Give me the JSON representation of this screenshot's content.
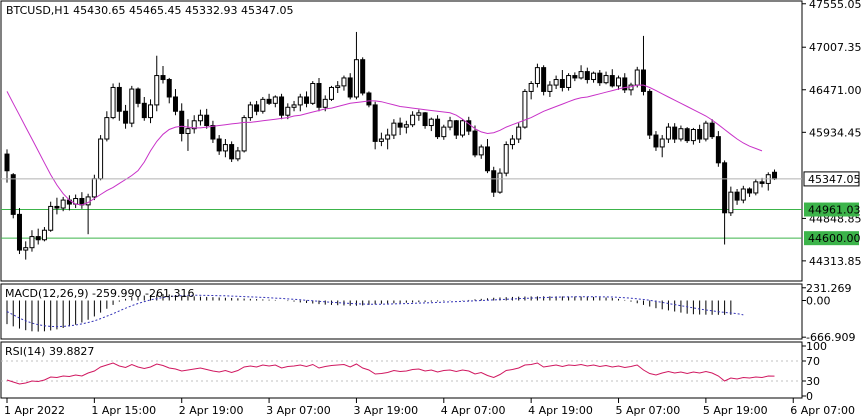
{
  "main": {
    "header": "BTCUSD,H1  45430.65 45465.45 45332.93 45347.05",
    "y_ticks": [
      "47555.05",
      "47007.35",
      "46471.00",
      "45934.45",
      "44848.85",
      "44313.85"
    ],
    "y_tick_values": [
      47555.05,
      47007.35,
      46471.0,
      45934.45,
      44848.85,
      44313.85
    ],
    "ylim": [
      44060,
      47590
    ],
    "current_price": {
      "value": 45347.05,
      "label": "45347.05"
    },
    "levels": [
      {
        "value": 44961.03,
        "label": "44961.03",
        "color": "#3cb44a"
      },
      {
        "value": 44600.0,
        "label": "44600.00",
        "color": "#3cb44a"
      }
    ],
    "ma_color": "#c832c8"
  },
  "macd": {
    "header": "MACD(12,26,9) -259.990 -261.316",
    "ticks": [
      "231.269",
      "0.00",
      "-666.909"
    ],
    "tick_values": [
      231.269,
      0,
      -666.909
    ],
    "ylim": [
      -700,
      300
    ]
  },
  "rsi": {
    "header": "RSI(14) 39.8827",
    "ticks": [
      "100",
      "70",
      "30",
      "0"
    ],
    "tick_values": [
      100,
      70,
      30,
      0
    ],
    "ylim": [
      0,
      100
    ],
    "color": "#d01860"
  },
  "x_labels": [
    "1 Apr 2022",
    "1 Apr 15:00",
    "2 Apr 19:00",
    "3 Apr 07:00",
    "3 Apr 19:00",
    "4 Apr 07:00",
    "4 Apr 19:00",
    "5 Apr 07:00",
    "5 Apr 19:00",
    "6 Apr 07:00"
  ],
  "x_label_bars": [
    0,
    14,
    28,
    42,
    56,
    70,
    84,
    98,
    112,
    126
  ],
  "chart_data": {
    "type": "candlestick",
    "symbol": "BTCUSD",
    "timeframe": "H1",
    "ohlc": [
      [
        45660,
        45720,
        45300,
        45450
      ],
      [
        45400,
        45420,
        44850,
        44900
      ],
      [
        44900,
        44980,
        44400,
        44450
      ],
      [
        44450,
        44560,
        44330,
        44480
      ],
      [
        44480,
        44700,
        44430,
        44620
      ],
      [
        44620,
        44720,
        44520,
        44580
      ],
      [
        44580,
        44740,
        44560,
        44700
      ],
      [
        44700,
        45060,
        44680,
        45000
      ],
      [
        45000,
        45110,
        44900,
        44980
      ],
      [
        44980,
        45120,
        44940,
        45080
      ],
      [
        45080,
        45140,
        44950,
        45030
      ],
      [
        45030,
        45150,
        44980,
        45100
      ],
      [
        45100,
        45180,
        44970,
        45020
      ],
      [
        45020,
        45160,
        44650,
        45120
      ],
      [
        45120,
        45400,
        45080,
        45350
      ],
      [
        45350,
        45900,
        45330,
        45850
      ],
      [
        45850,
        46200,
        45820,
        46120
      ],
      [
        46120,
        46550,
        46100,
        46500
      ],
      [
        46500,
        46560,
        46080,
        46200
      ],
      [
        46200,
        46280,
        45980,
        46050
      ],
      [
        46050,
        46520,
        46000,
        46480
      ],
      [
        46480,
        46500,
        46250,
        46300
      ],
      [
        46300,
        46380,
        46080,
        46120
      ],
      [
        46120,
        46350,
        46050,
        46280
      ],
      [
        46280,
        46900,
        46200,
        46650
      ],
      [
        46650,
        46770,
        46550,
        46600
      ],
      [
        46600,
        46620,
        46300,
        46380
      ],
      [
        46380,
        46480,
        46150,
        46200
      ],
      [
        46200,
        46300,
        45820,
        45920
      ],
      [
        45920,
        46100,
        45700,
        45980
      ],
      [
        45980,
        46150,
        45920,
        46080
      ],
      [
        46080,
        46220,
        46020,
        46150
      ],
      [
        46150,
        46230,
        45980,
        46020
      ],
      [
        46020,
        46080,
        45800,
        45850
      ],
      [
        45850,
        45900,
        45650,
        45700
      ],
      [
        45700,
        45850,
        45620,
        45780
      ],
      [
        45780,
        45820,
        45560,
        45600
      ],
      [
        45600,
        45750,
        45570,
        45700
      ],
      [
        45700,
        46150,
        45680,
        46120
      ],
      [
        46120,
        46320,
        46080,
        46280
      ],
      [
        46280,
        46330,
        46150,
        46200
      ],
      [
        46200,
        46380,
        46170,
        46350
      ],
      [
        46350,
        46420,
        46280,
        46300
      ],
      [
        46300,
        46400,
        46250,
        46380
      ],
      [
        46380,
        46420,
        46100,
        46150
      ],
      [
        46150,
        46300,
        46100,
        46250
      ],
      [
        46250,
        46330,
        46200,
        46280
      ],
      [
        46280,
        46420,
        46200,
        46380
      ],
      [
        46380,
        46450,
        46250,
        46300
      ],
      [
        46300,
        46580,
        46280,
        46550
      ],
      [
        46550,
        46620,
        46200,
        46250
      ],
      [
        46250,
        46400,
        46200,
        46350
      ],
      [
        46350,
        46520,
        46330,
        46500
      ],
      [
        46500,
        46580,
        46430,
        46520
      ],
      [
        46520,
        46650,
        46460,
        46620
      ],
      [
        46620,
        46680,
        46350,
        46380
      ],
      [
        46380,
        47200,
        46350,
        46850
      ],
      [
        46850,
        46880,
        46400,
        46430
      ],
      [
        46430,
        46450,
        46250,
        46280
      ],
      [
        46280,
        46320,
        45720,
        45820
      ],
      [
        45820,
        45930,
        45760,
        45850
      ],
      [
        45850,
        45980,
        45720,
        45900
      ],
      [
        45900,
        46100,
        45850,
        46050
      ],
      [
        46050,
        46120,
        45900,
        46000
      ],
      [
        46000,
        46080,
        45920,
        46030
      ],
      [
        46030,
        46200,
        46000,
        46150
      ],
      [
        46150,
        46220,
        46080,
        46180
      ],
      [
        46180,
        46190,
        45980,
        46020
      ],
      [
        46020,
        46120,
        45950,
        46100
      ],
      [
        46100,
        46150,
        45850,
        45880
      ],
      [
        45880,
        46030,
        45840,
        46000
      ],
      [
        46000,
        46130,
        45960,
        46080
      ],
      [
        46080,
        46090,
        45850,
        45900
      ],
      [
        45900,
        46100,
        45870,
        46080
      ],
      [
        46080,
        46130,
        45900,
        45950
      ],
      [
        45950,
        46020,
        45620,
        45650
      ],
      [
        45650,
        45780,
        45600,
        45750
      ],
      [
        45750,
        45850,
        45420,
        45450
      ],
      [
        45450,
        45500,
        45120,
        45180
      ],
      [
        45180,
        45480,
        45160,
        45420
      ],
      [
        45420,
        45820,
        45380,
        45780
      ],
      [
        45780,
        45900,
        45720,
        45850
      ],
      [
        45850,
        46050,
        45800,
        46000
      ],
      [
        46000,
        46480,
        45980,
        46450
      ],
      [
        46450,
        46580,
        46350,
        46550
      ],
      [
        46550,
        46800,
        46500,
        46750
      ],
      [
        46750,
        46780,
        46400,
        46450
      ],
      [
        46450,
        46580,
        46380,
        46530
      ],
      [
        46530,
        46650,
        46480,
        46600
      ],
      [
        46600,
        46720,
        46450,
        46500
      ],
      [
        46500,
        46680,
        46460,
        46650
      ],
      [
        46650,
        46690,
        46580,
        46620
      ],
      [
        46620,
        46780,
        46600,
        46700
      ],
      [
        46700,
        46750,
        46550,
        46600
      ],
      [
        46600,
        46700,
        46560,
        46680
      ],
      [
        46680,
        46720,
        46520,
        46560
      ],
      [
        46560,
        46700,
        46540,
        46650
      ],
      [
        46650,
        46730,
        46500,
        46520
      ],
      [
        46520,
        46650,
        46470,
        46620
      ],
      [
        46620,
        46680,
        46430,
        46470
      ],
      [
        46470,
        46560,
        46400,
        46530
      ],
      [
        46530,
        46760,
        46500,
        46720
      ],
      [
        46720,
        47150,
        46400,
        46450
      ],
      [
        46450,
        46480,
        45850,
        45900
      ],
      [
        45900,
        45950,
        45700,
        45750
      ],
      [
        45750,
        45900,
        45620,
        45850
      ],
      [
        45850,
        46050,
        45800,
        46000
      ],
      [
        46000,
        46050,
        45800,
        45850
      ],
      [
        45850,
        46020,
        45820,
        45980
      ],
      [
        45980,
        46000,
        45800,
        45830
      ],
      [
        45830,
        45990,
        45780,
        45970
      ],
      [
        45970,
        46030,
        45800,
        45850
      ],
      [
        45850,
        46080,
        45820,
        46050
      ],
      [
        46050,
        46100,
        45850,
        45880
      ],
      [
        45880,
        45950,
        45500,
        45550
      ],
      [
        45550,
        45580,
        44520,
        44920
      ],
      [
        44920,
        45250,
        44880,
        45180
      ],
      [
        45180,
        45220,
        45020,
        45080
      ],
      [
        45080,
        45260,
        45040,
        45220
      ],
      [
        45220,
        45240,
        45120,
        45170
      ],
      [
        45170,
        45340,
        45140,
        45310
      ],
      [
        45310,
        45360,
        45240,
        45290
      ],
      [
        45290,
        45430,
        45200,
        45400
      ],
      [
        45430.65,
        45465.45,
        45332.93,
        45347.05
      ]
    ],
    "ma": [
      46450,
      46300,
      46150,
      46000,
      45850,
      45700,
      45550,
      45400,
      45270,
      45160,
      45080,
      45030,
      45020,
      45050,
      45100,
      45150,
      45200,
      45240,
      45290,
      45340,
      45390,
      45450,
      45560,
      45700,
      45820,
      45910,
      45970,
      46000,
      46010,
      46000,
      45990,
      45990,
      46000,
      46010,
      46020,
      46030,
      46040,
      46050,
      46060,
      46060,
      46070,
      46080,
      46090,
      46100,
      46110,
      46120,
      46140,
      46150,
      46170,
      46190,
      46210,
      46230,
      46240,
      46260,
      46280,
      46300,
      46310,
      46320,
      46330,
      46330,
      46320,
      46300,
      46280,
      46260,
      46250,
      46240,
      46230,
      46220,
      46210,
      46200,
      46190,
      46180,
      46150,
      46100,
      46040,
      45980,
      45940,
      45920,
      45930,
      45960,
      46000,
      46030,
      46060,
      46090,
      46120,
      46160,
      46200,
      46230,
      46260,
      46290,
      46320,
      46350,
      46370,
      46380,
      46400,
      46420,
      46440,
      46460,
      46480,
      46500,
      46510,
      46530,
      46530,
      46500,
      46460,
      46420,
      46380,
      46340,
      46300,
      46260,
      46220,
      46180,
      46140,
      46090,
      46030,
      45970,
      45910,
      45850,
      45800,
      45760,
      45730,
      45700
    ],
    "macd_hist": [
      -430,
      -470,
      -510,
      -540,
      -560,
      -565,
      -560,
      -545,
      -525,
      -500,
      -470,
      -440,
      -400,
      -350,
      -290,
      -220,
      -150,
      -80,
      -20,
      30,
      60,
      80,
      90,
      100,
      110,
      115,
      110,
      100,
      90,
      80,
      75,
      70,
      65,
      60,
      55,
      50,
      45,
      40,
      35,
      30,
      25,
      20,
      15,
      10,
      0,
      -10,
      -20,
      -35,
      -45,
      -55,
      -65,
      -75,
      -80,
      -85,
      -90,
      -95,
      -95,
      -90,
      -80,
      -70,
      -60,
      -55,
      -50,
      -45,
      -40,
      -35,
      -30,
      -25,
      -20,
      -15,
      -10,
      -5,
      0,
      5,
      10,
      20,
      30,
      40,
      50,
      55,
      60,
      65,
      70,
      72,
      74,
      75,
      76,
      76,
      75,
      74,
      73,
      72,
      70,
      68,
      65,
      60,
      55,
      45,
      30,
      10,
      -20,
      -50,
      -80,
      -110,
      -140,
      -160,
      -180,
      -200,
      -220,
      -240,
      -250,
      -255,
      -258,
      -260,
      -260,
      -260,
      -259.99
    ],
    "macd_signal": [
      -200,
      -260,
      -320,
      -370,
      -410,
      -440,
      -460,
      -470,
      -475,
      -470,
      -460,
      -445,
      -425,
      -400,
      -370,
      -330,
      -285,
      -240,
      -190,
      -140,
      -95,
      -55,
      -20,
      10,
      35,
      55,
      70,
      80,
      88,
      92,
      94,
      94,
      93,
      91,
      88,
      85,
      80,
      76,
      71,
      66,
      61,
      56,
      50,
      44,
      38,
      30,
      22,
      13,
      4,
      -5,
      -14,
      -23,
      -32,
      -40,
      -47,
      -54,
      -60,
      -64,
      -67,
      -68,
      -67,
      -65,
      -62,
      -59,
      -56,
      -52,
      -48,
      -44,
      -40,
      -35,
      -30,
      -25,
      -20,
      -15,
      -10,
      -5,
      0,
      5,
      10,
      16,
      22,
      28,
      34,
      39,
      44,
      49,
      53,
      57,
      60,
      63,
      65,
      67,
      68,
      69,
      69,
      68,
      66,
      63,
      58,
      51,
      42,
      31,
      18,
      3,
      -15,
      -35,
      -55,
      -75,
      -95,
      -115,
      -135,
      -155,
      -172,
      -188,
      -203,
      -216,
      -228,
      -239,
      -261.316
    ],
    "rsi": [
      32,
      28,
      24,
      26,
      30,
      29,
      32,
      38,
      37,
      40,
      39,
      42,
      40,
      46,
      50,
      58,
      62,
      66,
      60,
      57,
      63,
      58,
      55,
      58,
      64,
      61,
      56,
      54,
      50,
      52,
      54,
      56,
      53,
      50,
      48,
      51,
      47,
      51,
      58,
      60,
      58,
      62,
      60,
      62,
      56,
      59,
      60,
      62,
      59,
      63,
      56,
      59,
      61,
      62,
      63,
      58,
      64,
      56,
      52,
      44,
      45,
      47,
      51,
      49,
      50,
      53,
      54,
      50,
      52,
      48,
      51,
      52,
      49,
      52,
      50,
      44,
      47,
      41,
      37,
      43,
      51,
      53,
      56,
      62,
      63,
      66,
      58,
      60,
      62,
      59,
      62,
      61,
      63,
      60,
      62,
      59,
      61,
      58,
      60,
      57,
      59,
      62,
      52,
      45,
      42,
      46,
      49,
      46,
      48,
      45,
      48,
      46,
      49,
      46,
      40,
      30,
      36,
      34,
      37,
      36,
      38,
      37,
      40,
      39.8827
    ]
  }
}
